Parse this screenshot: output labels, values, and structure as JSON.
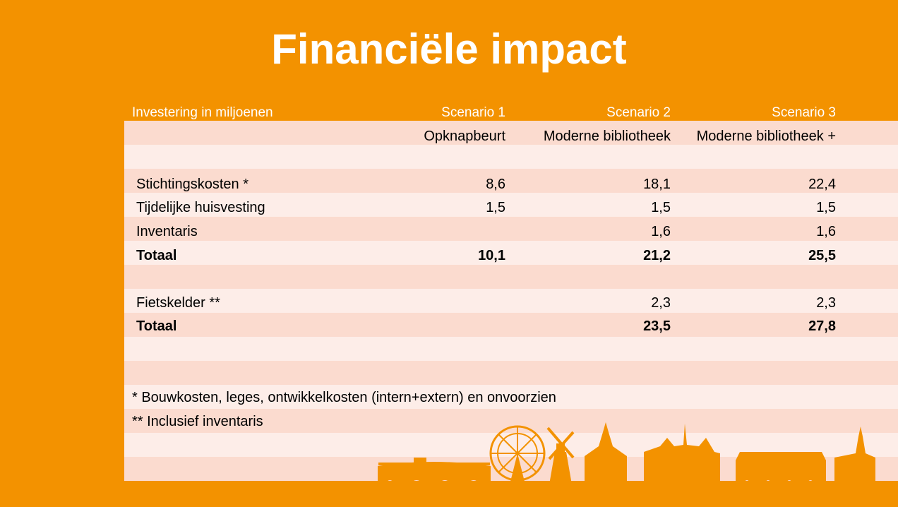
{
  "title": "Financiële impact",
  "header": {
    "label": "Investering in miljoenen",
    "scenarios": [
      "Scenario 1",
      "Scenario 2",
      "Scenario 3"
    ],
    "subtitles": [
      "Opknapbeurt",
      "Moderne bibliotheek",
      "Moderne bibliotheek +"
    ]
  },
  "rows": [
    {
      "label": "Stichtingskosten *",
      "values": [
        "8,6",
        "18,1",
        "22,4"
      ],
      "bold": false
    },
    {
      "label": "Tijdelijke huisvesting",
      "values": [
        "1,5",
        "1,5",
        "1,5"
      ],
      "bold": false
    },
    {
      "label": "Inventaris",
      "values": [
        "",
        "1,6",
        "1,6"
      ],
      "bold": false
    },
    {
      "label": "Totaal",
      "values": [
        "10,1",
        "21,2",
        "25,5"
      ],
      "bold": true
    },
    {
      "label": "Fietskelder **",
      "values": [
        "",
        "2,3",
        "2,3"
      ],
      "bold": false
    },
    {
      "label": "Totaal",
      "values": [
        "",
        "23,5",
        "27,8"
      ],
      "bold": true
    }
  ],
  "notes": [
    "* Bouwkosten, leges, ontwikkelkosten (intern+extern) en onvoorzien",
    "** Inclusief inventaris"
  ],
  "colors": {
    "background": "#F39200",
    "stripe_dark": "#FBDBCF",
    "stripe_light": "#FDEDE8",
    "header_text": "#FFFFFF"
  },
  "skyline_icon": "city-skyline-icon"
}
